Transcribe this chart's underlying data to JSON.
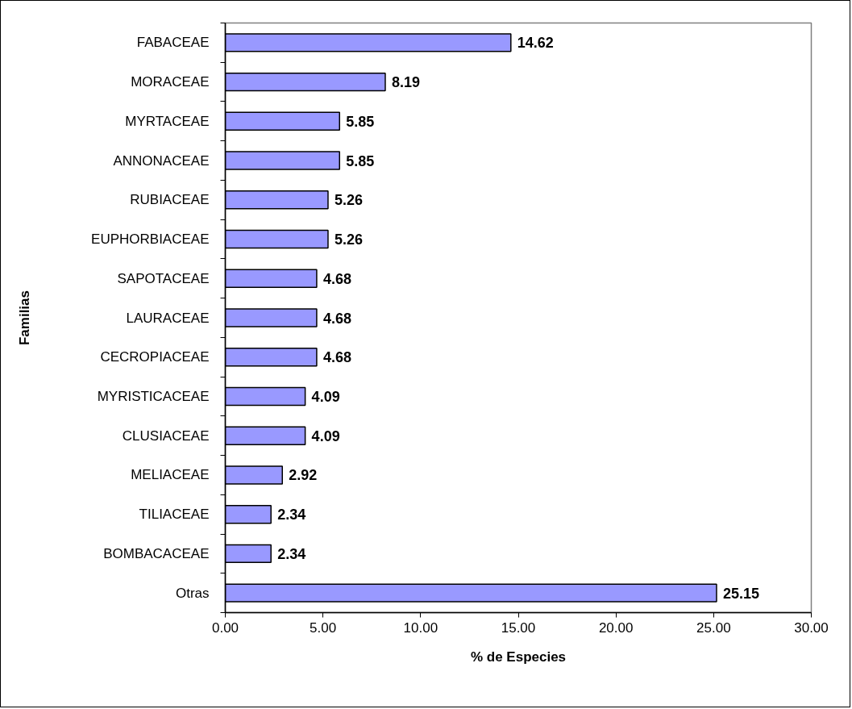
{
  "chart_data": {
    "type": "bar",
    "orientation": "horizontal",
    "categories": [
      "FABACEAE",
      "MORACEAE",
      "MYRTACEAE",
      "ANNONACEAE",
      "RUBIACEAE",
      "EUPHORBIACEAE",
      "SAPOTACEAE",
      "LAURACEAE",
      "CECROPIACEAE",
      "MYRISTICACEAE",
      "CLUSIACEAE",
      "MELIACEAE",
      "TILIACEAE",
      "BOMBACACEAE",
      "Otras"
    ],
    "values": [
      14.62,
      8.19,
      5.85,
      5.85,
      5.26,
      5.26,
      4.68,
      4.68,
      4.68,
      4.09,
      4.09,
      2.92,
      2.34,
      2.34,
      25.15
    ],
    "color": "#9999ff",
    "data_labels": true,
    "xlabel": "% de Especies",
    "ylabel": "Familias",
    "xlim": [
      0,
      30
    ],
    "xticks": [
      {
        "value": 0,
        "label": "0.00"
      },
      {
        "value": 5,
        "label": "5.00"
      },
      {
        "value": 10,
        "label": "10.00"
      },
      {
        "value": 15,
        "label": "15.00"
      },
      {
        "value": 20,
        "label": "20.00"
      },
      {
        "value": 25,
        "label": "25.00"
      },
      {
        "value": 30,
        "label": "30.00"
      }
    ]
  }
}
